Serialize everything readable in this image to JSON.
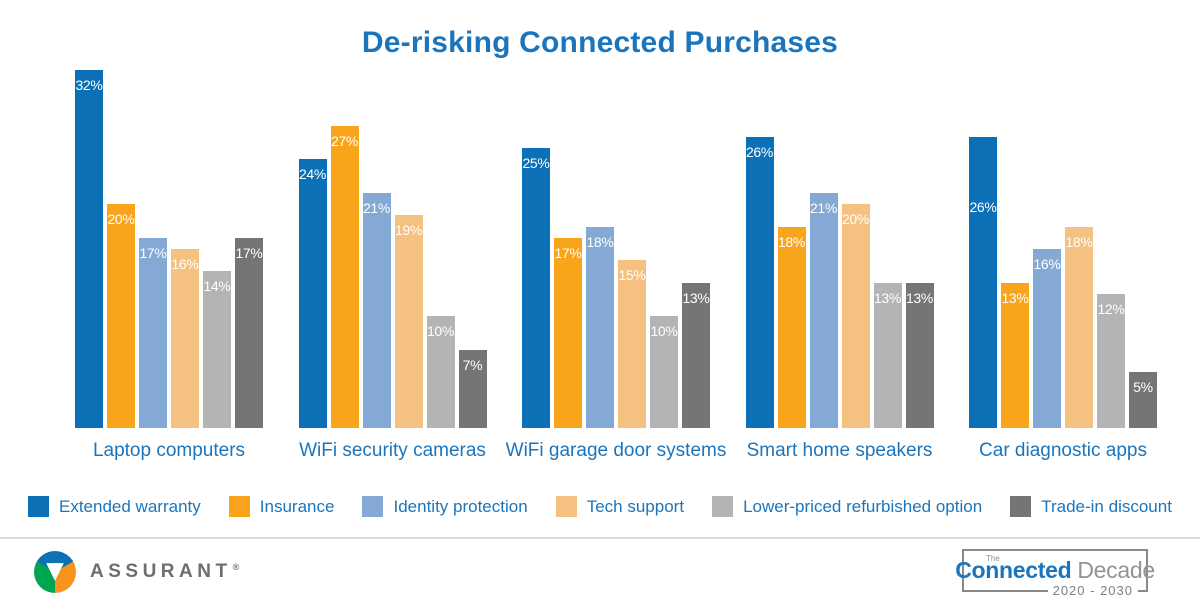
{
  "title": "De-risking Connected Purchases",
  "chart_data": {
    "type": "bar",
    "title": "De-risking Connected Purchases",
    "categories": [
      "Laptop computers",
      "WiFi security cameras",
      "WiFi garage door systems",
      "Smart home speakers",
      "Car diagnostic apps"
    ],
    "series": [
      {
        "name": "Extended warranty",
        "color": "#0B70B5",
        "values": [
          32,
          24,
          25,
          26,
          26
        ],
        "label_dy": [
          0,
          0,
          0,
          0,
          62
        ]
      },
      {
        "name": "Insurance",
        "color": "#F9A51C",
        "values": [
          20,
          27,
          17,
          18,
          13
        ]
      },
      {
        "name": "Identity protection",
        "color": "#84A9D4",
        "values": [
          17,
          21,
          18,
          21,
          16
        ]
      },
      {
        "name": "Tech support",
        "color": "#F5C181",
        "values": [
          16,
          19,
          15,
          20,
          18
        ]
      },
      {
        "name": "Lower-priced refurbished option",
        "color": "#B3B4B6",
        "values": [
          14,
          10,
          10,
          13,
          12
        ]
      },
      {
        "name": "Trade-in discount",
        "color": "#757578",
        "values": [
          17,
          7,
          13,
          13,
          5
        ]
      }
    ],
    "value_suffix": "%",
    "value_labels": "inside-top, white",
    "xlabel": "",
    "ylabel": "",
    "ylim": [
      0,
      32
    ],
    "grid": false,
    "axes_visible": false,
    "legend_position": "bottom",
    "title_color": "#1B75BC",
    "category_label_color": "#1B75BC"
  },
  "footer": {
    "brand": "ASSURANT",
    "brand_reg": "®",
    "badge": {
      "the": "The",
      "word1": "Connected",
      "word2": "Decade",
      "years": "2020 - 2030"
    }
  }
}
